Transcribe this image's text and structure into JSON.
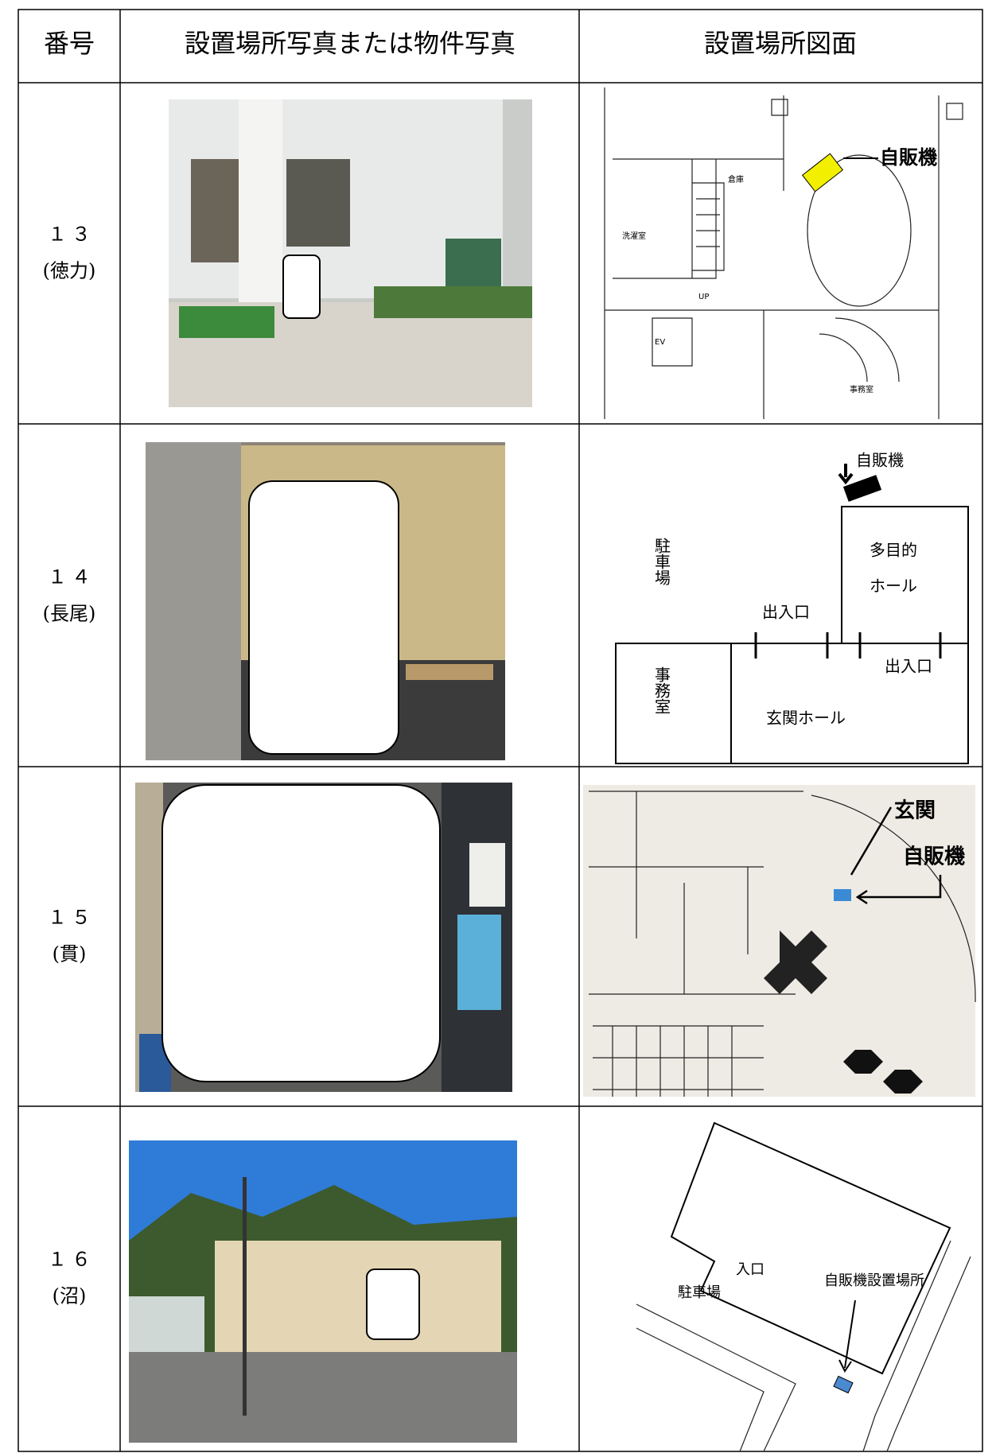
{
  "table": {
    "headers": [
      "番号",
      "設置場所写真または物件写真",
      "設置場所図面"
    ],
    "rows": [
      {
        "number": "１３",
        "place": "(徳力)",
        "plan_labels": [
          "自販機",
          "倉庫",
          "洗濯室",
          "UP",
          "EV",
          "事務室"
        ]
      },
      {
        "number": "１４",
        "place": "(長尾)",
        "plan_labels": [
          "自販機",
          "駐車場",
          "多目的",
          "ホール",
          "出入口",
          "出入口",
          "事務室",
          "玄関ホール"
        ]
      },
      {
        "number": "１５",
        "place": "(貫)",
        "plan_labels": [
          "玄関",
          "自販機"
        ]
      },
      {
        "number": "１６",
        "place": "(沼)",
        "plan_labels": [
          "入口",
          "駐車場",
          "自販機設置場所"
        ]
      }
    ]
  }
}
